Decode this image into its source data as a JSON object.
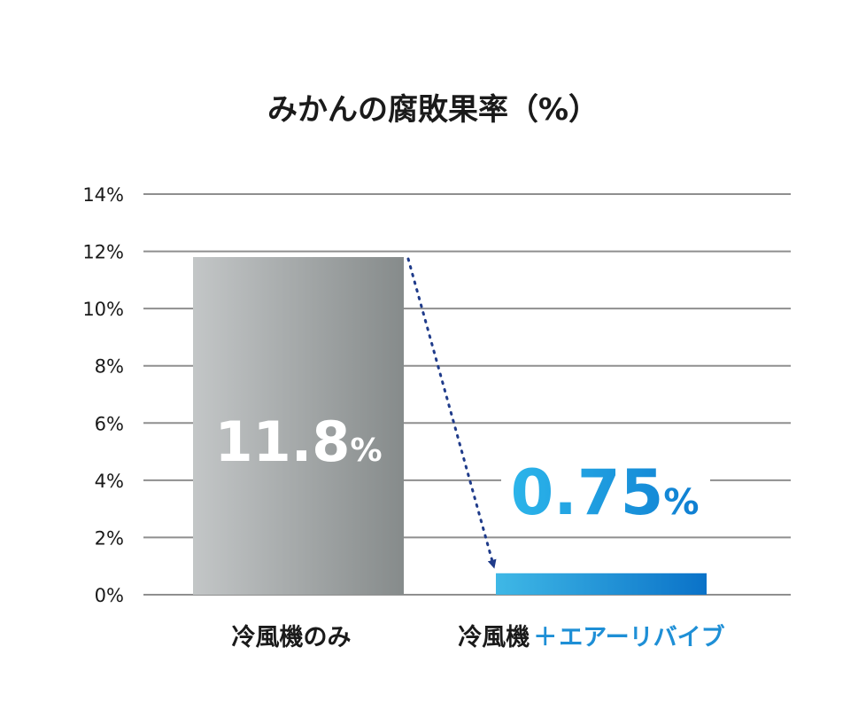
{
  "chart_data": {
    "type": "bar",
    "title": "みかんの腐敗果率（%）",
    "xlabel": "",
    "ylabel": "",
    "ylim": [
      0,
      14
    ],
    "yticks": [
      0,
      2,
      4,
      6,
      8,
      10,
      12,
      14
    ],
    "ytick_labels": [
      "0%",
      "2%",
      "4%",
      "6%",
      "8%",
      "10%",
      "12%",
      "14%"
    ],
    "grid": true,
    "categories": [
      "冷風機のみ",
      "冷風機＋エアーリバイブ"
    ],
    "category_labels": [
      {
        "main": "冷風機のみ",
        "plus": "",
        "accent": ""
      },
      {
        "main": "冷風機",
        "plus": "＋",
        "accent": "エアーリバイブ"
      }
    ],
    "values": [
      11.8,
      0.75
    ],
    "data_labels": [
      {
        "number": "11.8",
        "unit": "%"
      },
      {
        "number": "0.75",
        "unit": "%"
      }
    ],
    "colors": {
      "bar1_start": "#c3c6c7",
      "bar1_end": "#868b8b",
      "bar2_start": "#3fb8e6",
      "bar2_end": "#0a72c8",
      "label2_start": "#2cb5ea",
      "label2_end": "#0f7fd2",
      "grid": "#8f8f8f",
      "arrow": "#1f3b8a",
      "accent": "#1e8fd6"
    }
  }
}
